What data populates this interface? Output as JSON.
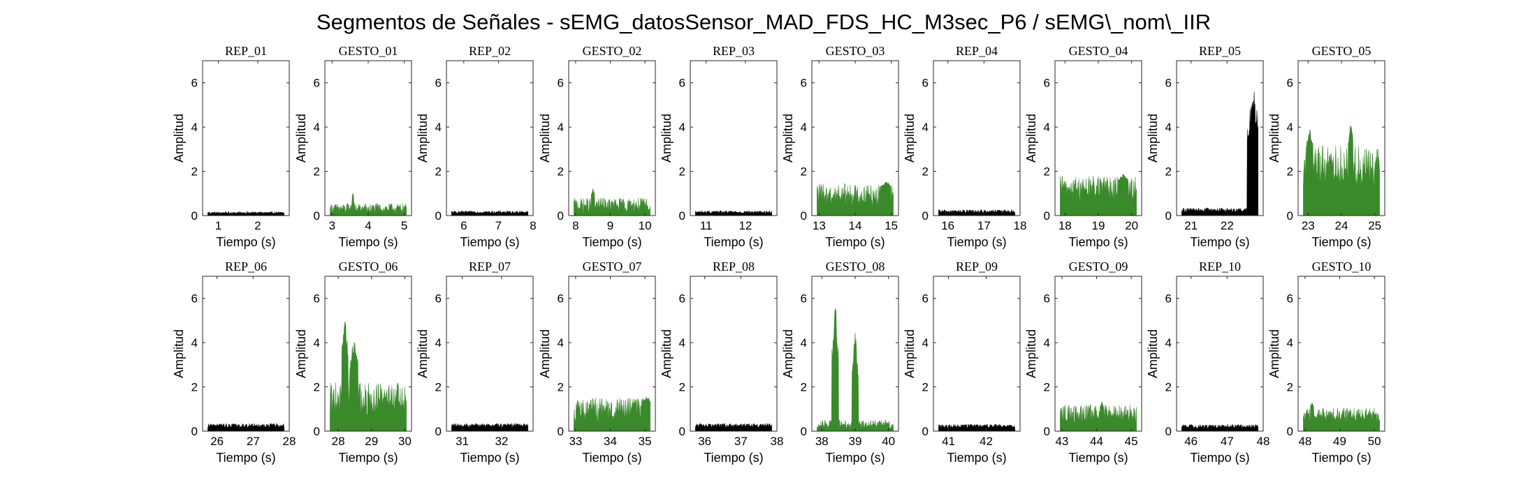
{
  "figure": {
    "title": "Segmentos de Señales - sEMG_datosSensor_MAD_FDS_HC_M3sec_P6 / sEMG\\_nom\\_IIR"
  },
  "chart_data": [
    {
      "type": "area",
      "title": "REP_01",
      "xlabel": "Tiempo (s)",
      "ylabel": "Amplitud",
      "color": "#000000",
      "xlim": [
        0.6,
        2.8
      ],
      "ylim": [
        0,
        7
      ],
      "xticks": [
        1,
        2
      ],
      "yticks": [
        0,
        2,
        4,
        6
      ],
      "baseline": 0.12,
      "noise": 0.05,
      "events": []
    },
    {
      "type": "area",
      "title": "GESTO_01",
      "xlabel": "Tiempo (s)",
      "ylabel": "Amplitud",
      "color": "#3a8a2b",
      "xlim": [
        2.8,
        5.2
      ],
      "ylim": [
        0,
        7
      ],
      "xticks": [
        3,
        4,
        5
      ],
      "yticks": [
        0,
        2,
        4,
        6
      ],
      "baseline": 0.3,
      "noise": 0.25,
      "events": [
        [
          3.55,
          3.6,
          1.2
        ]
      ]
    },
    {
      "type": "area",
      "title": "REP_02",
      "xlabel": "Tiempo (s)",
      "ylabel": "Amplitud",
      "color": "#000000",
      "xlim": [
        5.5,
        8.0
      ],
      "ylim": [
        0,
        7
      ],
      "xticks": [
        6,
        7,
        8
      ],
      "yticks": [
        0,
        2,
        4,
        6
      ],
      "baseline": 0.15,
      "noise": 0.06,
      "events": []
    },
    {
      "type": "area",
      "title": "GESTO_02",
      "xlabel": "Tiempo (s)",
      "ylabel": "Amplitud",
      "color": "#3a8a2b",
      "xlim": [
        7.8,
        10.3
      ],
      "ylim": [
        0,
        7
      ],
      "xticks": [
        8,
        9,
        10
      ],
      "yticks": [
        0,
        2,
        4,
        6
      ],
      "baseline": 0.45,
      "noise": 0.35,
      "events": [
        [
          8.45,
          8.55,
          1.3
        ]
      ]
    },
    {
      "type": "area",
      "title": "REP_03",
      "xlabel": "Tiempo (s)",
      "ylabel": "Amplitud",
      "color": "#000000",
      "xlim": [
        10.6,
        12.8
      ],
      "ylim": [
        0,
        7
      ],
      "xticks": [
        11,
        12
      ],
      "yticks": [
        0,
        2,
        4,
        6
      ],
      "baseline": 0.15,
      "noise": 0.07,
      "events": []
    },
    {
      "type": "area",
      "title": "GESTO_03",
      "xlabel": "Tiempo (s)",
      "ylabel": "Amplitud",
      "color": "#3a8a2b",
      "xlim": [
        12.8,
        15.2
      ],
      "ylim": [
        0,
        7
      ],
      "xticks": [
        13,
        14,
        15
      ],
      "yticks": [
        0,
        2,
        4,
        6
      ],
      "baseline": 0.9,
      "noise": 0.55,
      "events": [
        [
          14.7,
          15.0,
          1.6
        ]
      ]
    },
    {
      "type": "area",
      "title": "REP_04",
      "xlabel": "Tiempo (s)",
      "ylabel": "Amplitud",
      "color": "#000000",
      "xlim": [
        15.6,
        18.0
      ],
      "ylim": [
        0,
        7
      ],
      "xticks": [
        16,
        17,
        18
      ],
      "yticks": [
        0,
        2,
        4,
        6
      ],
      "baseline": 0.18,
      "noise": 0.08,
      "events": []
    },
    {
      "type": "area",
      "title": "GESTO_04",
      "xlabel": "Tiempo (s)",
      "ylabel": "Amplitud",
      "color": "#3a8a2b",
      "xlim": [
        17.7,
        20.3
      ],
      "ylim": [
        0,
        7
      ],
      "xticks": [
        18,
        19,
        20
      ],
      "yticks": [
        0,
        2,
        4,
        6
      ],
      "baseline": 1.2,
      "noise": 0.6,
      "events": [
        [
          19.6,
          19.9,
          1.9
        ]
      ]
    },
    {
      "type": "area",
      "title": "REP_05",
      "xlabel": "Tiempo (s)",
      "ylabel": "Amplitud",
      "color": "#000000",
      "xlim": [
        20.6,
        23.0
      ],
      "ylim": [
        0,
        7
      ],
      "xticks": [
        21,
        22
      ],
      "yticks": [
        0,
        2,
        4,
        6
      ],
      "baseline": 0.25,
      "noise": 0.1,
      "events": [
        [
          22.55,
          22.9,
          6.2
        ]
      ]
    },
    {
      "type": "area",
      "title": "GESTO_05",
      "xlabel": "Tiempo (s)",
      "ylabel": "Amplitud",
      "color": "#3a8a2b",
      "xlim": [
        22.7,
        25.3
      ],
      "ylim": [
        0,
        7
      ],
      "xticks": [
        23,
        24,
        25
      ],
      "yticks": [
        0,
        2,
        4,
        6
      ],
      "baseline": 2.2,
      "noise": 1.0,
      "events": [
        [
          22.95,
          23.15,
          4.0
        ],
        [
          24.2,
          24.35,
          4.3
        ]
      ]
    },
    {
      "type": "area",
      "title": "REP_06",
      "xlabel": "Tiempo (s)",
      "ylabel": "Amplitud",
      "color": "#000000",
      "xlim": [
        25.6,
        28.0
      ],
      "ylim": [
        0,
        7
      ],
      "xticks": [
        26,
        27,
        28
      ],
      "yticks": [
        0,
        2,
        4,
        6
      ],
      "baseline": 0.25,
      "noise": 0.1,
      "events": []
    },
    {
      "type": "area",
      "title": "GESTO_06",
      "xlabel": "Tiempo (s)",
      "ylabel": "Amplitud",
      "color": "#3a8a2b",
      "xlim": [
        27.6,
        30.2
      ],
      "ylim": [
        0,
        7
      ],
      "xticks": [
        28,
        29,
        30
      ],
      "yticks": [
        0,
        2,
        4,
        6
      ],
      "baseline": 1.4,
      "noise": 0.8,
      "events": [
        [
          28.1,
          28.3,
          5.3
        ],
        [
          28.35,
          28.6,
          4.3
        ]
      ]
    },
    {
      "type": "area",
      "title": "REP_07",
      "xlabel": "Tiempo (s)",
      "ylabel": "Amplitud",
      "color": "#000000",
      "xlim": [
        30.6,
        32.8
      ],
      "ylim": [
        0,
        7
      ],
      "xticks": [
        31,
        32
      ],
      "yticks": [
        0,
        2,
        4,
        6
      ],
      "baseline": 0.25,
      "noise": 0.1,
      "events": []
    },
    {
      "type": "area",
      "title": "GESTO_07",
      "xlabel": "Tiempo (s)",
      "ylabel": "Amplitud",
      "color": "#3a8a2b",
      "xlim": [
        32.8,
        35.3
      ],
      "ylim": [
        0,
        7
      ],
      "xticks": [
        33,
        34,
        35
      ],
      "yticks": [
        0,
        2,
        4,
        6
      ],
      "baseline": 0.9,
      "noise": 0.6,
      "events": [
        [
          34.9,
          35.2,
          1.6
        ]
      ]
    },
    {
      "type": "area",
      "title": "REP_08",
      "xlabel": "Tiempo (s)",
      "ylabel": "Amplitud",
      "color": "#000000",
      "xlim": [
        35.6,
        38.0
      ],
      "ylim": [
        0,
        7
      ],
      "xticks": [
        36,
        37,
        38
      ],
      "yticks": [
        0,
        2,
        4,
        6
      ],
      "baseline": 0.25,
      "noise": 0.1,
      "events": []
    },
    {
      "type": "area",
      "title": "GESTO_08",
      "xlabel": "Tiempo (s)",
      "ylabel": "Amplitud",
      "color": "#3a8a2b",
      "xlim": [
        37.7,
        40.3
      ],
      "ylim": [
        0,
        7
      ],
      "xticks": [
        38,
        39,
        40
      ],
      "yticks": [
        0,
        2,
        4,
        6
      ],
      "baseline": 0.3,
      "noise": 0.2,
      "events": [
        [
          38.3,
          38.5,
          6.0
        ],
        [
          38.9,
          39.1,
          4.6
        ]
      ]
    },
    {
      "type": "area",
      "title": "REP_09",
      "xlabel": "Tiempo (s)",
      "ylabel": "Amplitud",
      "color": "#000000",
      "xlim": [
        40.6,
        42.9
      ],
      "ylim": [
        0,
        7
      ],
      "xticks": [
        41,
        42
      ],
      "yticks": [
        0,
        2,
        4,
        6
      ],
      "baseline": 0.22,
      "noise": 0.09,
      "events": []
    },
    {
      "type": "area",
      "title": "GESTO_09",
      "xlabel": "Tiempo (s)",
      "ylabel": "Amplitud",
      "color": "#3a8a2b",
      "xlim": [
        42.8,
        45.3
      ],
      "ylim": [
        0,
        7
      ],
      "xticks": [
        43,
        44,
        45
      ],
      "yticks": [
        0,
        2,
        4,
        6
      ],
      "baseline": 0.75,
      "noise": 0.45,
      "events": [
        [
          44.1,
          44.2,
          1.4
        ]
      ]
    },
    {
      "type": "area",
      "title": "REP_10",
      "xlabel": "Tiempo (s)",
      "ylabel": "Amplitud",
      "color": "#000000",
      "xlim": [
        45.6,
        48.0
      ],
      "ylim": [
        0,
        7
      ],
      "xticks": [
        46,
        47,
        48
      ],
      "yticks": [
        0,
        2,
        4,
        6
      ],
      "baseline": 0.2,
      "noise": 0.1,
      "events": []
    },
    {
      "type": "area",
      "title": "GESTO_10",
      "xlabel": "Tiempo (s)",
      "ylabel": "Amplitud",
      "color": "#3a8a2b",
      "xlim": [
        47.8,
        50.3
      ],
      "ylim": [
        0,
        7
      ],
      "xticks": [
        48,
        49,
        50
      ],
      "yticks": [
        0,
        2,
        4,
        6
      ],
      "baseline": 0.7,
      "noise": 0.35,
      "events": [
        [
          48.15,
          48.25,
          1.4
        ]
      ]
    }
  ]
}
